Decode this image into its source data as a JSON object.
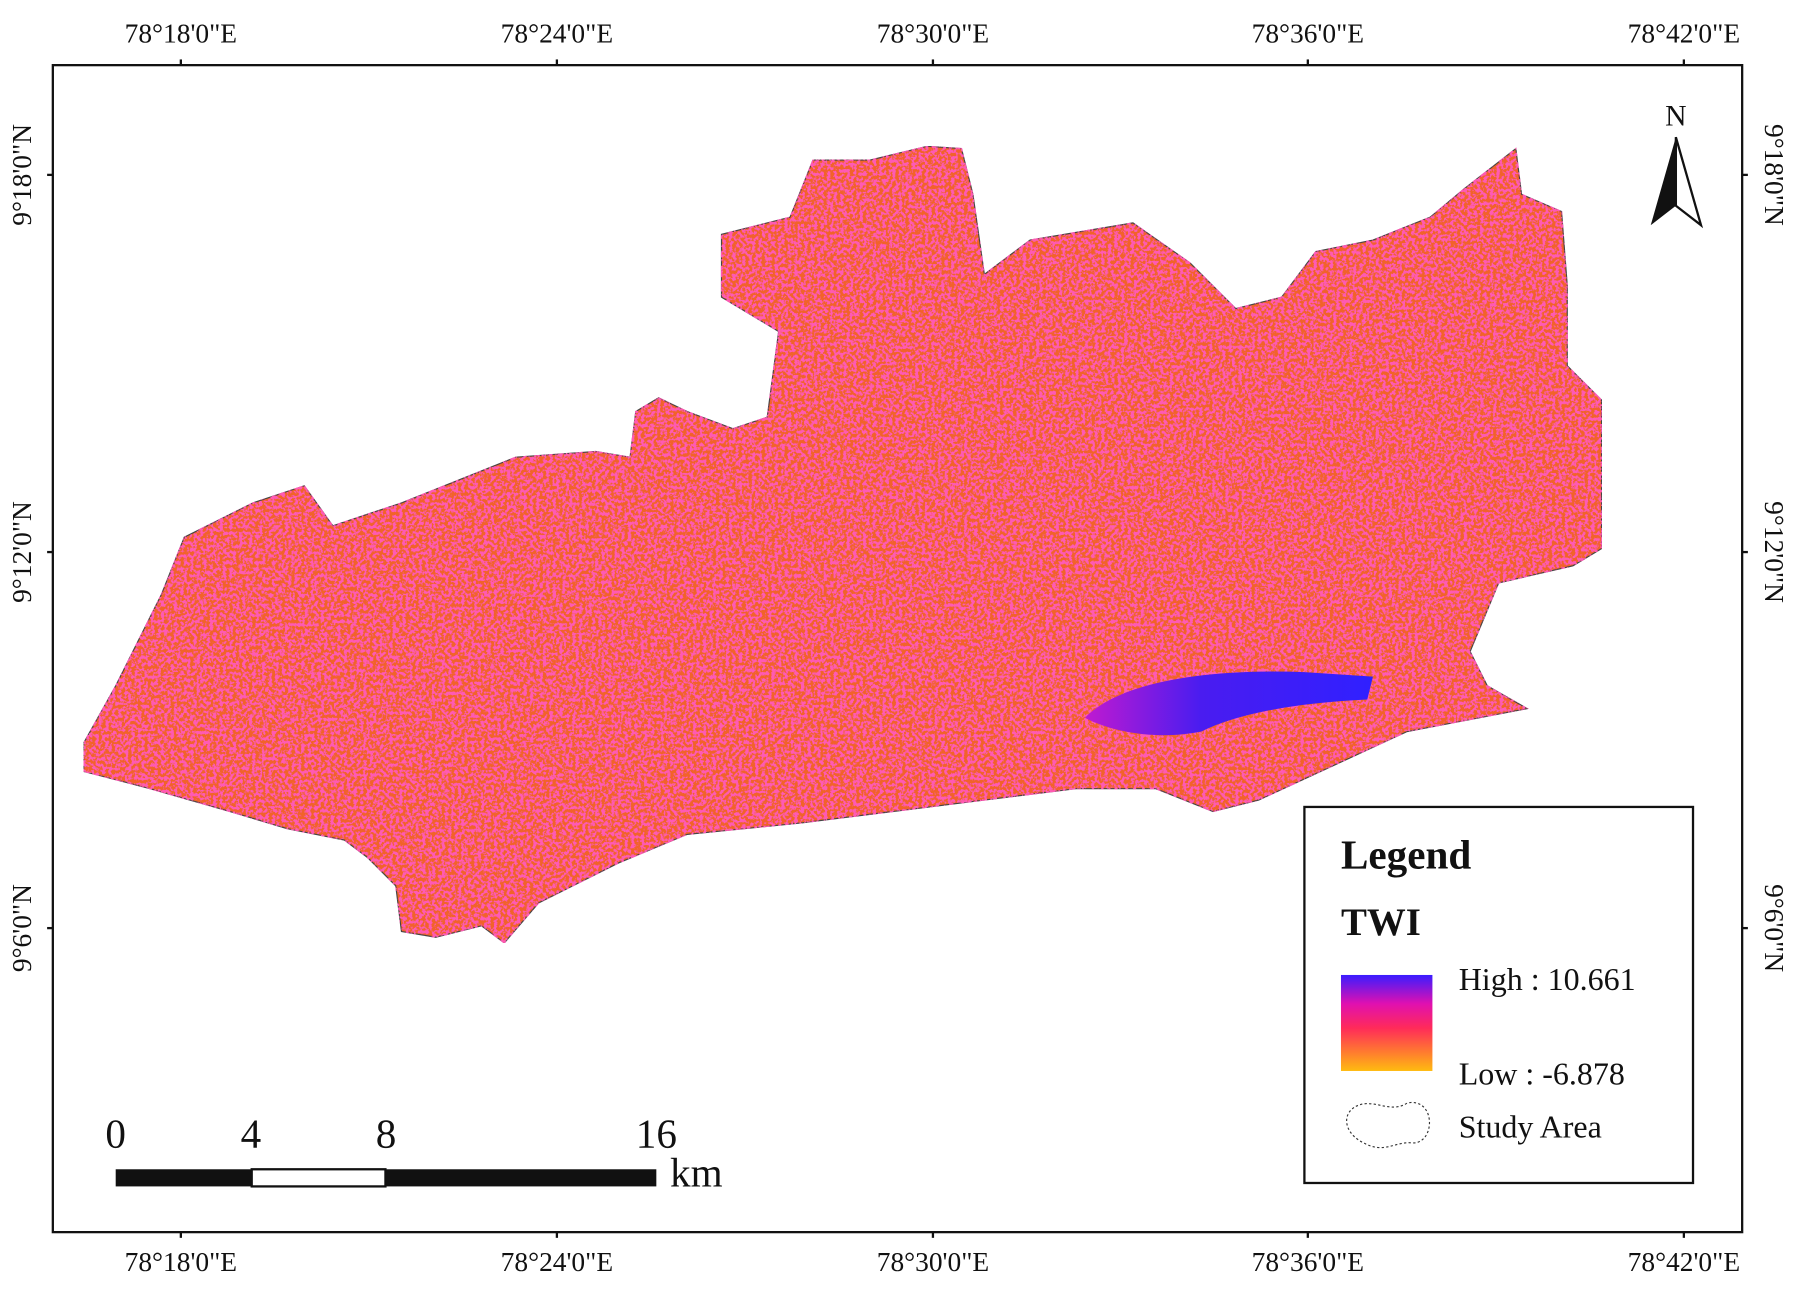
{
  "x_labels_top": [
    "78°18'0\"E",
    "78°24'0\"E",
    "78°30'0\"E",
    "78°36'0\"E",
    "78°42'0\"E"
  ],
  "x_labels_bottom": [
    "78°18'0\"E",
    "78°24'0\"E",
    "78°30'0\"E",
    "78°36'0\"E",
    "78°42'0\"E"
  ],
  "y_labels_left": [
    "9°18'0\"N",
    "9°12'0\"N",
    "9°6'0\"N"
  ],
  "y_labels_right": [
    "9°18'0\"N",
    "9°12'0\"N",
    "9°6'0\"N"
  ],
  "north_arrow": "N",
  "legend": {
    "title": "Legend",
    "layer": "TWI",
    "high": "High : 10.661",
    "low": "Low : -6.878",
    "study_area": "Study Area"
  },
  "scale_bar": {
    "labels": [
      0,
      4,
      8,
      16
    ],
    "unit": "km"
  }
}
